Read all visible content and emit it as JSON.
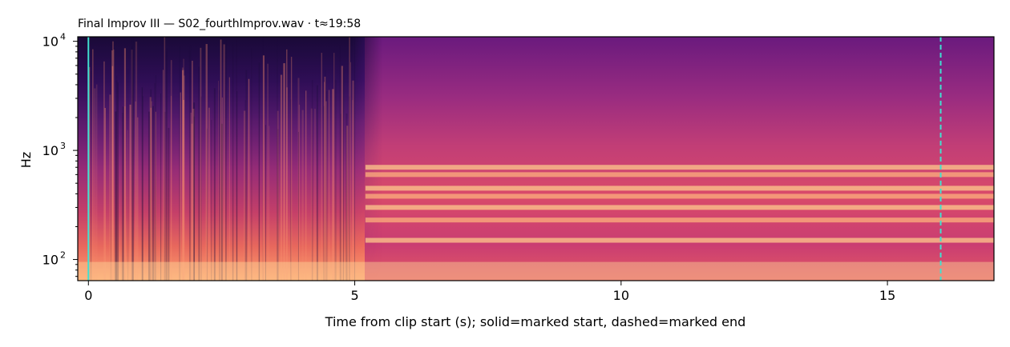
{
  "chart_data": {
    "type": "heatmap",
    "title": "Final Improv III  —  S02_fourthImprov.wav · t≈19:58",
    "xlabel": "Time from clip start (s); solid=marked start, dashed=marked end",
    "ylabel": "Hz",
    "x_scale": "linear",
    "y_scale": "log",
    "xlim": [
      -0.2,
      17.0
    ],
    "ylim": [
      64,
      11000
    ],
    "x_ticks": [
      0,
      5,
      10,
      15
    ],
    "x_tick_labels": [
      "0",
      "5",
      "10",
      "15"
    ],
    "y_ticks": [
      100,
      1000,
      10000
    ],
    "y_tick_labels": [
      {
        "base": "10",
        "exp": "2"
      },
      {
        "base": "10",
        "exp": "3"
      },
      {
        "base": "10",
        "exp": "4"
      }
    ],
    "colormap": "magma",
    "markers": [
      {
        "kind": "solid",
        "x": 0.0,
        "color": "#40e0d0"
      },
      {
        "kind": "dashed",
        "x": 16.0,
        "color": "#40e0d0"
      }
    ],
    "description_regions": [
      {
        "x": [
          0,
          5
        ],
        "character": "percussive vertical striations, dark above ~1 kHz"
      },
      {
        "x": [
          5.2,
          17
        ],
        "character": "sustained harmonic bands between ~100 Hz and ~1.5 kHz"
      }
    ],
    "harmonic_bands_hz": [
      150,
      230,
      300,
      380,
      450,
      600,
      700
    ]
  }
}
